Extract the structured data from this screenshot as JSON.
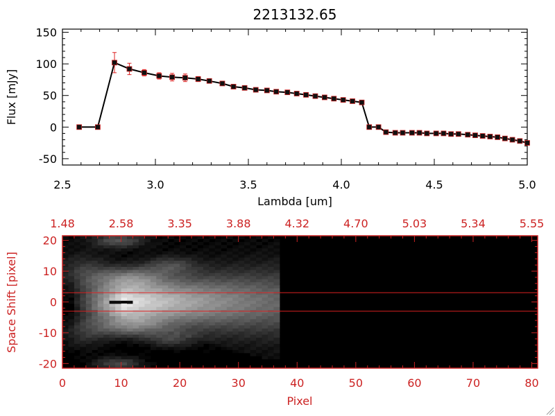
{
  "title": "2213132.65",
  "colors": {
    "axis": "#000000",
    "error_bar": "#dd2222",
    "marker_edge": "#cc2222",
    "image_axis": "#cc2222",
    "band_line": "#dd2222"
  },
  "chart_data": [
    {
      "type": "line",
      "xlabel": "Lambda [um]",
      "ylabel": "Flux [mJy]",
      "xlim": [
        2.5,
        5.0
      ],
      "ylim": [
        -60,
        155
      ],
      "xticks": [
        "2.5",
        "3.0",
        "3.5",
        "4.0",
        "4.5",
        "5.0"
      ],
      "yticks": [
        "150",
        "100",
        "50",
        "0",
        "-50"
      ],
      "x": [
        2.59,
        2.69,
        2.78,
        2.86,
        2.94,
        3.02,
        3.09,
        3.16,
        3.23,
        3.29,
        3.36,
        3.42,
        3.48,
        3.54,
        3.6,
        3.65,
        3.71,
        3.76,
        3.81,
        3.86,
        3.91,
        3.96,
        4.01,
        4.06,
        4.11,
        4.15,
        4.2,
        4.24,
        4.29,
        4.33,
        4.38,
        4.42,
        4.46,
        4.51,
        4.55,
        4.59,
        4.63,
        4.68,
        4.72,
        4.76,
        4.8,
        4.84,
        4.88,
        4.92,
        4.96,
        5.0
      ],
      "y": [
        0,
        0,
        102,
        92,
        86,
        81,
        79,
        78,
        76,
        73,
        69,
        64,
        62,
        59,
        58,
        56,
        55,
        53,
        51,
        49,
        47,
        45,
        43,
        41,
        39,
        0,
        0,
        -8,
        -9,
        -9,
        -9,
        -9,
        -10,
        -10,
        -10,
        -11,
        -11,
        -12,
        -13,
        -14,
        -15,
        -16,
        -18,
        -20,
        -22,
        -25
      ],
      "yerr": [
        0,
        0,
        16,
        9,
        5,
        5,
        6,
        6,
        4,
        2,
        2,
        2,
        2,
        2,
        1,
        1,
        1,
        1,
        1,
        1,
        1,
        1,
        1,
        1,
        1,
        0,
        0,
        1,
        1,
        1,
        1,
        1,
        1,
        1,
        1,
        1,
        1,
        1,
        1,
        1,
        1,
        1,
        1,
        1,
        1,
        2
      ]
    },
    {
      "type": "heatmap",
      "xlabel": "Pixel",
      "ylabel": "Space Shift [pixel]",
      "xlim": [
        0,
        81
      ],
      "ylim": [
        -21.5,
        21.5
      ],
      "xticks": [
        "0",
        "10",
        "20",
        "30",
        "40",
        "50",
        "60",
        "70",
        "80"
      ],
      "yticks": [
        "20",
        "10",
        "0",
        "-10",
        "-20"
      ],
      "top_axis_ticks": [
        "1.48",
        "2.58",
        "3.35",
        "3.88",
        "4.32",
        "4.70",
        "5.03",
        "5.34",
        "5.55"
      ],
      "signal_extent_pixel": 37,
      "peak_pixel": 10,
      "band_lines": [
        3,
        -3
      ]
    }
  ]
}
